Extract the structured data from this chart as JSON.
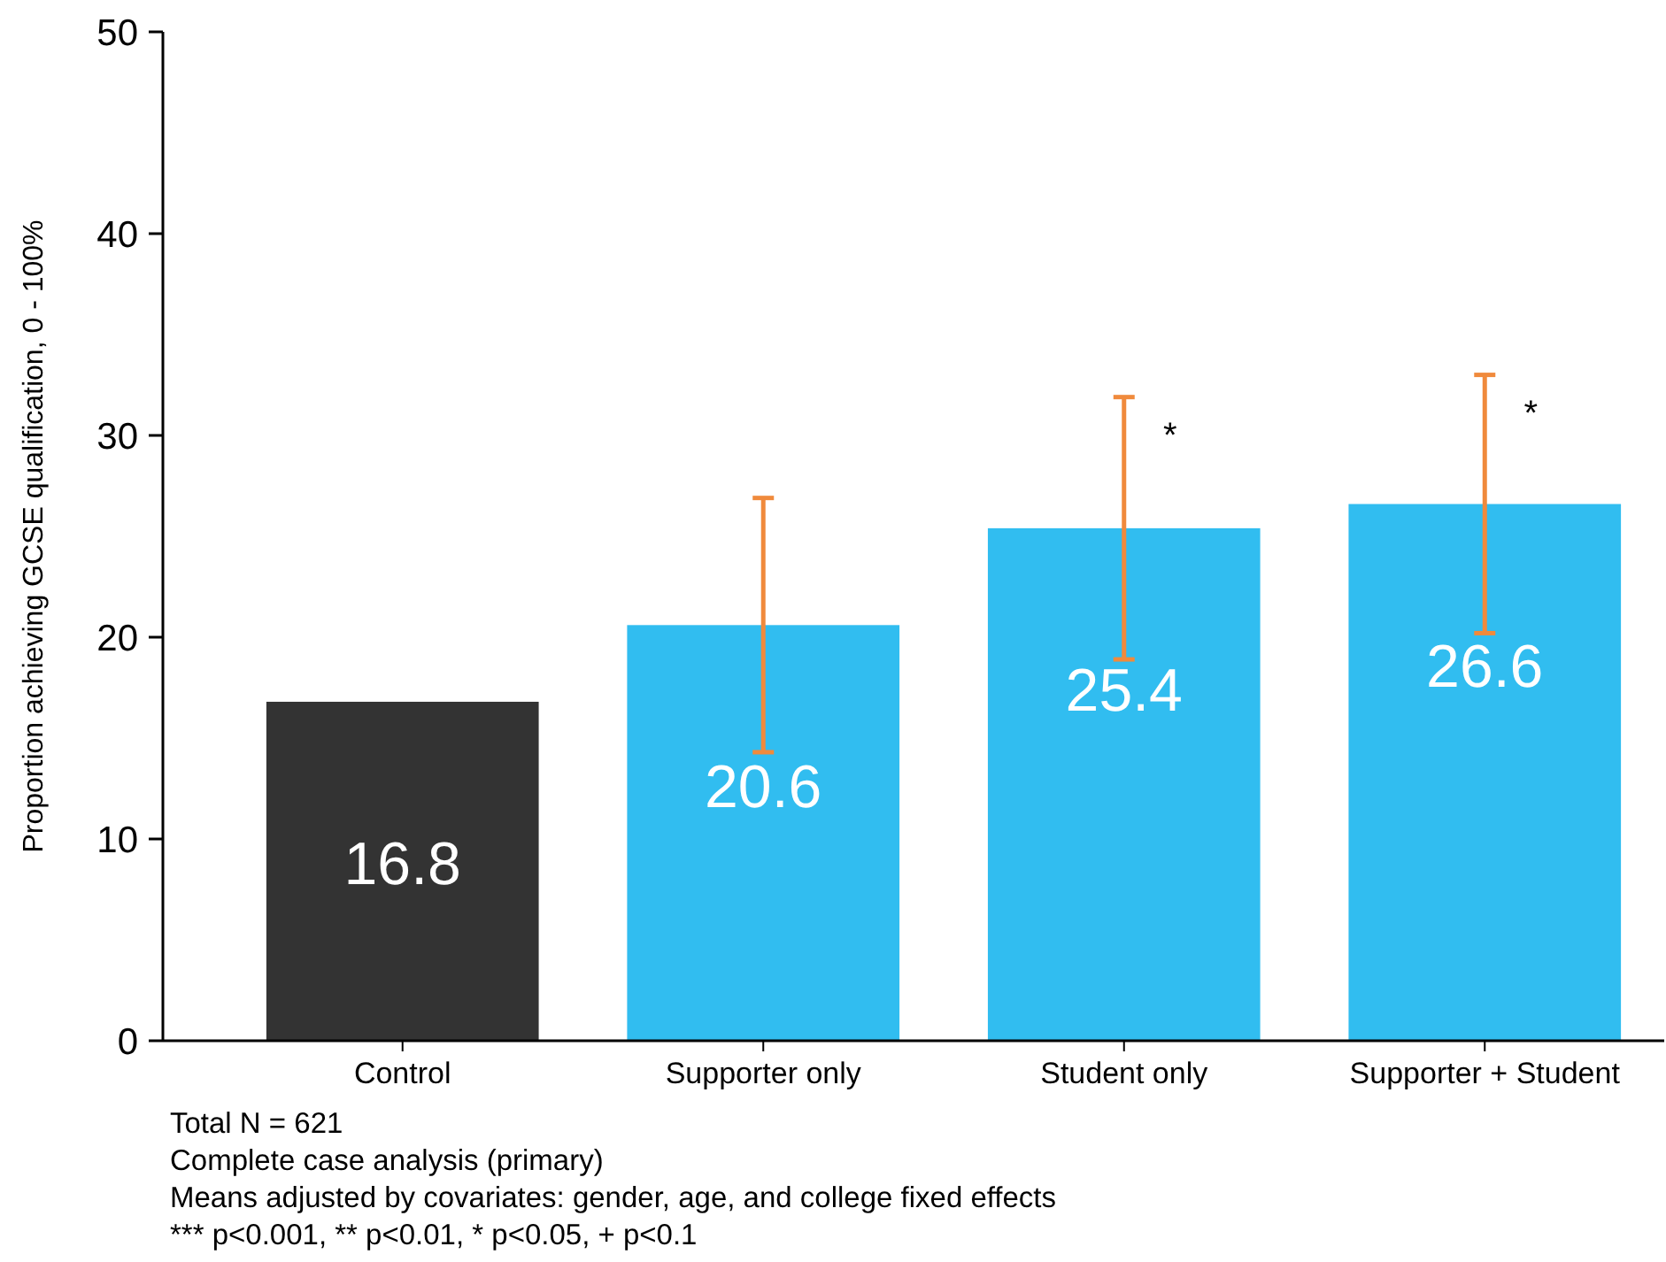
{
  "chart_data": {
    "type": "bar",
    "ylabel": "Proportion achieving GCSE qualification, 0 - 100%",
    "categories": [
      "Control",
      "Supporter only",
      "Student only",
      "Supporter + Student"
    ],
    "values": [
      16.8,
      20.6,
      25.4,
      26.6
    ],
    "colors": [
      "#333333",
      "#31bdf0",
      "#31bdf0",
      "#31bdf0"
    ],
    "errors": [
      null,
      [
        14.3,
        26.9
      ],
      [
        18.9,
        31.9
      ],
      [
        20.2,
        33.0
      ]
    ],
    "ylim": [
      0,
      50
    ],
    "yticks": [
      0,
      10,
      20,
      30,
      40,
      50
    ],
    "data_labels": true,
    "annotations": [
      {
        "text": "*",
        "x": "Student only",
        "y": 31.9
      },
      {
        "text": "*",
        "x": "Supporter + Student",
        "y": 33.0
      },
      "Total N = 621",
      "Complete case analysis (primary)",
      "Means adjusted by covariates: gender, age, and college fixed effects",
      "*** p<0.001, ** p<0.01, * p<0.05, + p<0.1"
    ]
  }
}
